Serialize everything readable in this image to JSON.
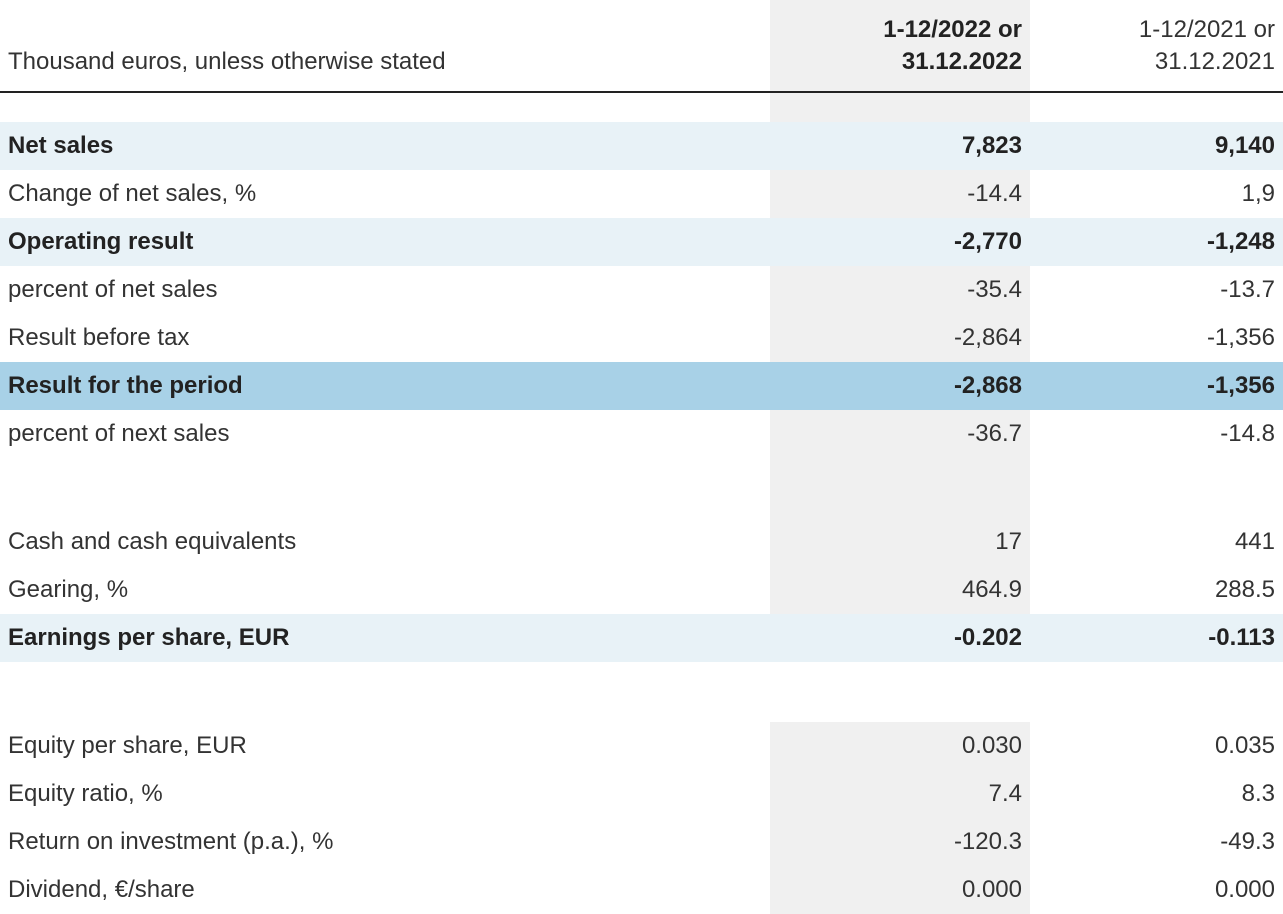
{
  "table": {
    "type": "table",
    "background_color": "#ffffff",
    "highlight_col_bg": "#f0f0f0",
    "highlight_light_bg": "#e8f2f7",
    "highlight_medium_bg": "#a8d1e7",
    "text_color": "#333333",
    "bold_text_color": "#222222",
    "underline_color": "#222222",
    "font_size_pt": 18,
    "columns": {
      "label_header": "Thousand euros, unless otherwise stated",
      "col_2022_header_line1": "1-12/2022 or",
      "col_2022_header_line2": "31.12.2022",
      "col_2021_header_line1": "1-12/2021 or",
      "col_2021_header_line2": "31.12.2021"
    },
    "rows": {
      "net_sales": {
        "label": "Net sales",
        "v2022": "7,823",
        "v2021": "9,140"
      },
      "change_net_sales": {
        "label": "Change of net sales, %",
        "v2022": "-14.4",
        "v2021": "1,9"
      },
      "operating_result": {
        "label": "Operating result",
        "v2022": "-2,770",
        "v2021": "-1,248"
      },
      "pct_net_sales_1": {
        "label": "percent of net sales",
        "v2022": "-35.4",
        "v2021": "-13.7"
      },
      "result_before_tax": {
        "label": "Result before tax",
        "v2022": "-2,864",
        "v2021": "-1,356"
      },
      "result_period": {
        "label": "Result for the period",
        "v2022": "-2,868",
        "v2021": "-1,356"
      },
      "pct_net_sales_2": {
        "label": "percent of next sales",
        "v2022": "-36.7",
        "v2021": "-14.8"
      },
      "cash": {
        "label": "Cash and cash equivalents",
        "v2022": "17",
        "v2021": "441"
      },
      "gearing": {
        "label": "Gearing, %",
        "v2022": "464.9",
        "v2021": "288.5"
      },
      "eps": {
        "label": "Earnings per share, EUR",
        "v2022": "-0.202",
        "v2021": "-0.113"
      },
      "equity_per_share": {
        "label": "Equity per share, EUR",
        "v2022": "0.030",
        "v2021": "0.035"
      },
      "equity_ratio": {
        "label": "Equity ratio, %",
        "v2022": "7.4",
        "v2021": "8.3"
      },
      "roi": {
        "label": "Return on investment (p.a.), %",
        "v2022": "-120.3",
        "v2021": "-49.3"
      },
      "dividend": {
        "label": "Dividend, €/share",
        "v2022": "0.000",
        "v2021": "0.000"
      }
    }
  }
}
